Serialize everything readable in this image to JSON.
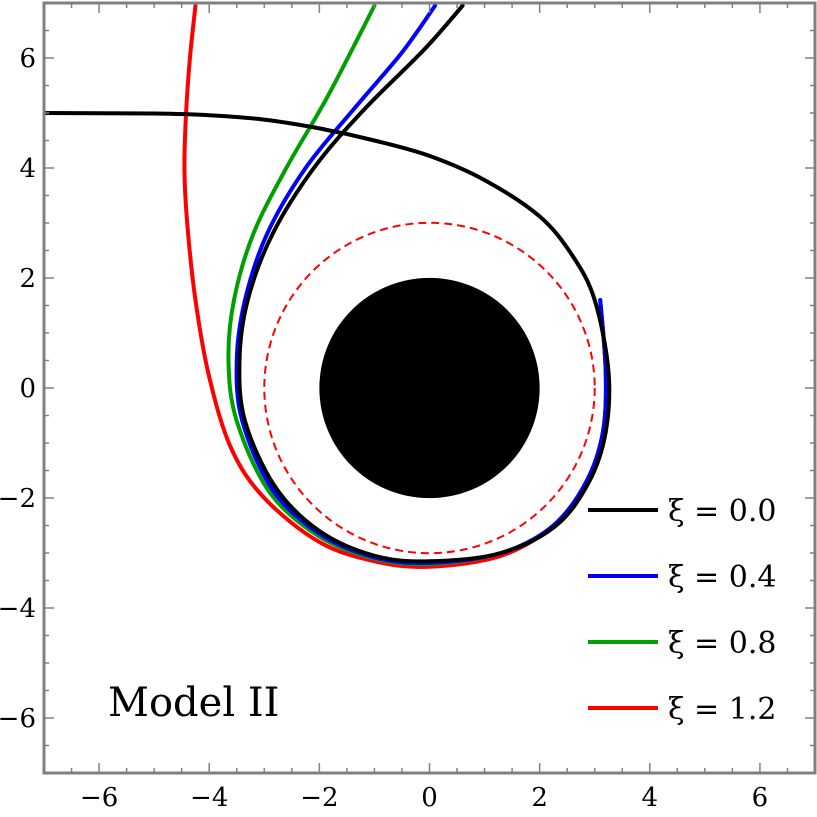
{
  "chart_data": {
    "type": "line",
    "title": "",
    "xlabel": "",
    "ylabel": "",
    "xlim": [
      -7,
      7
    ],
    "ylim": [
      -7,
      7
    ],
    "grid": false,
    "x_ticks": [
      -6,
      -4,
      -2,
      0,
      2,
      4,
      6
    ],
    "y_ticks": [
      -6,
      -4,
      -2,
      0,
      2,
      4,
      6
    ],
    "x_tick_labels": [
      "−6",
      "−4",
      "−2",
      "0",
      "2",
      "4",
      "6"
    ],
    "y_tick_labels": [
      "−6",
      "−4",
      "−2",
      "0",
      "2",
      "4",
      "6"
    ],
    "legend_position": "bottom-right",
    "annotation": "Model II",
    "shapes": [
      {
        "name": "black-hole-disk",
        "shape": "disk",
        "center": [
          0,
          0
        ],
        "radius": 2,
        "color": "#000000"
      },
      {
        "name": "photon-sphere-circle",
        "shape": "dashed-circle",
        "center": [
          0,
          0
        ],
        "radius": 3,
        "color": "#ff0000"
      }
    ],
    "series": [
      {
        "name": "ξ = 0.0",
        "color": "#000000",
        "points": [
          [
            -7,
            5.0
          ],
          [
            -5,
            4.99
          ],
          [
            -4,
            4.96
          ],
          [
            -3,
            4.88
          ],
          [
            -2,
            4.72
          ],
          [
            -1,
            4.5
          ],
          [
            0,
            4.22
          ],
          [
            1,
            3.78
          ],
          [
            2,
            3.12
          ],
          [
            2.6,
            2.4
          ],
          [
            3,
            1.6
          ],
          [
            3.25,
            0.3
          ],
          [
            3.2,
            -0.8
          ],
          [
            2.9,
            -1.7
          ],
          [
            2.3,
            -2.5
          ],
          [
            1.3,
            -3.0
          ],
          [
            0,
            -3.15
          ],
          [
            -1,
            -3.05
          ],
          [
            -2,
            -2.6
          ],
          [
            -2.8,
            -1.8
          ],
          [
            -3.35,
            -0.6
          ],
          [
            -3.45,
            0.5
          ],
          [
            -3.3,
            1.6
          ],
          [
            -2.85,
            2.8
          ],
          [
            -2.1,
            4.0
          ],
          [
            -1.2,
            5.05
          ],
          [
            -0.1,
            6.15
          ],
          [
            0.6,
            6.95
          ]
        ]
      },
      {
        "name": "ξ = 0.4",
        "color": "#0000ff",
        "points": [
          [
            3.1,
            1.6
          ],
          [
            3.2,
            0.3
          ],
          [
            3.15,
            -0.8
          ],
          [
            2.85,
            -1.7
          ],
          [
            2.25,
            -2.5
          ],
          [
            1.3,
            -3.0
          ],
          [
            0,
            -3.18
          ],
          [
            -1,
            -3.08
          ],
          [
            -2,
            -2.65
          ],
          [
            -2.85,
            -1.85
          ],
          [
            -3.4,
            -0.6
          ],
          [
            -3.5,
            0.5
          ],
          [
            -3.35,
            1.6
          ],
          [
            -2.95,
            2.8
          ],
          [
            -2.25,
            4.0
          ],
          [
            -1.35,
            5.1
          ],
          [
            -0.5,
            6.1
          ],
          [
            0.1,
            6.95
          ]
        ]
      },
      {
        "name": "ξ = 0.8",
        "color": "#00a000",
        "points": [
          [
            3.1,
            1.6
          ],
          [
            3.2,
            0.3
          ],
          [
            3.15,
            -0.8
          ],
          [
            2.85,
            -1.7
          ],
          [
            2.25,
            -2.5
          ],
          [
            1.3,
            -3.0
          ],
          [
            0,
            -3.2
          ],
          [
            -1,
            -3.1
          ],
          [
            -2,
            -2.7
          ],
          [
            -2.9,
            -1.9
          ],
          [
            -3.5,
            -0.6
          ],
          [
            -3.65,
            0.5
          ],
          [
            -3.55,
            1.6
          ],
          [
            -3.2,
            2.8
          ],
          [
            -2.6,
            4.0
          ],
          [
            -1.85,
            5.3
          ],
          [
            -1.0,
            6.95
          ]
        ]
      },
      {
        "name": "ξ = 1.2",
        "color": "#ff0000",
        "points": [
          [
            3.1,
            1.6
          ],
          [
            3.2,
            0.3
          ],
          [
            3.15,
            -0.8
          ],
          [
            2.85,
            -1.7
          ],
          [
            2.25,
            -2.5
          ],
          [
            1.3,
            -3.05
          ],
          [
            0,
            -3.25
          ],
          [
            -1,
            -3.15
          ],
          [
            -2,
            -2.8
          ],
          [
            -3,
            -2.0
          ],
          [
            -3.6,
            -1.1
          ],
          [
            -4.0,
            0.2
          ],
          [
            -4.25,
            1.6
          ],
          [
            -4.4,
            3.0
          ],
          [
            -4.45,
            4.0
          ],
          [
            -4.42,
            5.0
          ],
          [
            -4.35,
            6.0
          ],
          [
            -4.25,
            6.95
          ]
        ]
      }
    ]
  }
}
